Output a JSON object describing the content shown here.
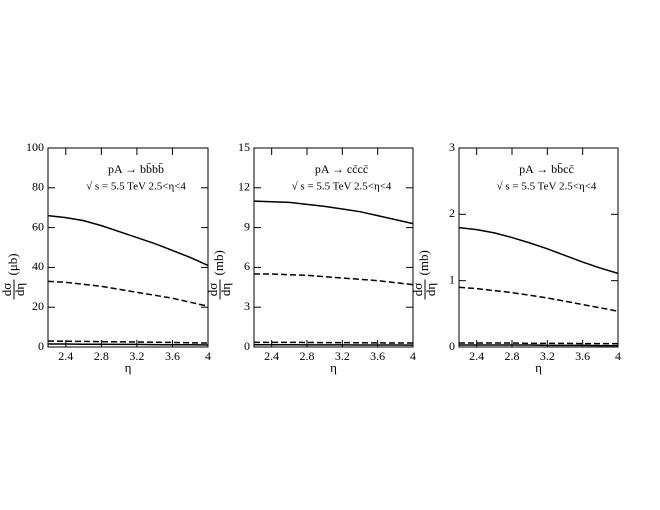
{
  "chart_data": [
    {
      "type": "line",
      "title": "pA → bb̄bb̄",
      "subtitle": "√ s = 5.5 TeV   2.5<η<4",
      "xlabel": "η",
      "ylabel_numerator": "dσ",
      "ylabel_denominator": "dη",
      "ylabel_unit": "(μb)",
      "x": [
        2.2,
        2.4,
        2.6,
        2.8,
        3.0,
        3.2,
        3.4,
        3.6,
        3.8,
        4.0
      ],
      "xlim": [
        2.2,
        4
      ],
      "xticks": [
        2.4,
        2.8,
        3.2,
        3.6,
        4
      ],
      "ylim": [
        0,
        100
      ],
      "yticks": [
        0,
        20,
        40,
        60,
        80,
        100
      ],
      "series": [
        {
          "color": "#000000",
          "dashed": false,
          "values": [
            66,
            65,
            63.5,
            61,
            58,
            55,
            52,
            48.5,
            45,
            41
          ]
        },
        {
          "color": "#000000",
          "dashed": true,
          "values": [
            33,
            32.5,
            31.5,
            30.5,
            29,
            27.5,
            26,
            24.5,
            22.5,
            20.5
          ]
        },
        {
          "color": "#000000",
          "dashed": true,
          "values": [
            3,
            2.9,
            2.8,
            2.7,
            2.6,
            2.5,
            2.4,
            2.3,
            2.1,
            2
          ]
        },
        {
          "color": "#000000",
          "dashed": false,
          "values": [
            1.5,
            1.5,
            1.4,
            1.4,
            1.3,
            1.3,
            1.2,
            1.1,
            1.1,
            1
          ]
        }
      ]
    },
    {
      "type": "line",
      "title": "pA → cc̄cc̄",
      "subtitle": "√ s = 5.5 TeV   2.5<η<4",
      "xlabel": "η",
      "ylabel_numerator": "dσ",
      "ylabel_denominator": "dη",
      "ylabel_unit": "(mb)",
      "x": [
        2.2,
        2.4,
        2.6,
        2.8,
        3.0,
        3.2,
        3.4,
        3.6,
        3.8,
        4.0
      ],
      "xlim": [
        2.2,
        4
      ],
      "xticks": [
        2.4,
        2.8,
        3.2,
        3.6,
        4
      ],
      "ylim": [
        0,
        15
      ],
      "yticks": [
        0,
        3,
        6,
        9,
        12,
        15
      ],
      "series": [
        {
          "color": "#000000",
          "dashed": false,
          "values": [
            11.0,
            10.95,
            10.9,
            10.75,
            10.6,
            10.4,
            10.2,
            9.9,
            9.6,
            9.3
          ]
        },
        {
          "color": "#000000",
          "dashed": true,
          "values": [
            5.5,
            5.5,
            5.45,
            5.4,
            5.3,
            5.2,
            5.1,
            5.0,
            4.85,
            4.7
          ]
        },
        {
          "color": "#000000",
          "dashed": true,
          "values": [
            0.35,
            0.35,
            0.35,
            0.34,
            0.33,
            0.33,
            0.32,
            0.31,
            0.3,
            0.3
          ]
        },
        {
          "color": "#000000",
          "dashed": false,
          "values": [
            0.17,
            0.17,
            0.17,
            0.16,
            0.16,
            0.16,
            0.15,
            0.15,
            0.15,
            0.14
          ]
        }
      ]
    },
    {
      "type": "line",
      "title": "pA → bb̄cc̄",
      "subtitle": "√ s = 5.5 TeV   2.5<η<4",
      "xlabel": "η",
      "ylabel_numerator": "dσ",
      "ylabel_denominator": "dη",
      "ylabel_unit": "(mb)",
      "x": [
        2.2,
        2.4,
        2.6,
        2.8,
        3.0,
        3.2,
        3.4,
        3.6,
        3.8,
        4.0
      ],
      "xlim": [
        2.2,
        4
      ],
      "xticks": [
        2.4,
        2.8,
        3.2,
        3.6,
        4
      ],
      "ylim": [
        0,
        3
      ],
      "yticks": [
        0,
        1,
        2,
        3
      ],
      "series": [
        {
          "color": "#000000",
          "dashed": false,
          "values": [
            1.8,
            1.77,
            1.72,
            1.65,
            1.57,
            1.48,
            1.38,
            1.28,
            1.19,
            1.11
          ]
        },
        {
          "color": "#000000",
          "dashed": true,
          "values": [
            0.9,
            0.88,
            0.85,
            0.82,
            0.78,
            0.74,
            0.69,
            0.64,
            0.59,
            0.54
          ]
        },
        {
          "color": "#000000",
          "dashed": true,
          "values": [
            0.06,
            0.06,
            0.06,
            0.06,
            0.055,
            0.055,
            0.055,
            0.05,
            0.05,
            0.05
          ]
        },
        {
          "color": "#000000",
          "dashed": false,
          "values": [
            0.03,
            0.03,
            0.03,
            0.03,
            0.03,
            0.025,
            0.025,
            0.025,
            0.02,
            0.02
          ]
        }
      ]
    }
  ]
}
